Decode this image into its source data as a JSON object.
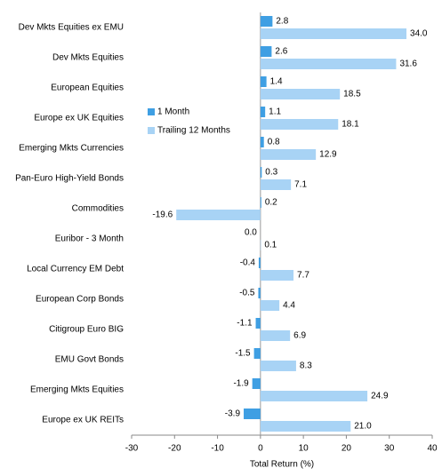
{
  "chart_data": {
    "type": "hbar",
    "xlabel": "Total Return (%)",
    "categories": [
      "Dev Mkts Equities ex EMU",
      "Dev Mkts Equities",
      "European Equities",
      "Europe ex UK Equities",
      "Emerging Mkts Currencies",
      "Pan-Euro High-Yield Bonds",
      "Commodities",
      "Euribor - 3 Month",
      "Local Currency EM Debt",
      "European Corp Bonds",
      "Citigroup Euro BIG",
      "EMU Govt Bonds",
      "Emerging Mkts Equities",
      "Europe ex UK REITs"
    ],
    "series": [
      {
        "name": "1 Month",
        "color": "#3f9fe3",
        "values": [
          2.8,
          2.6,
          1.4,
          1.1,
          0.8,
          0.3,
          0.2,
          0.0,
          -0.4,
          -0.5,
          -1.1,
          -1.5,
          -1.9,
          -3.9
        ],
        "value_labels": [
          "2.8",
          "2.6",
          "1.4",
          "1.1",
          "0.8",
          "0.3",
          "0.2",
          "0.0",
          "-0.4",
          "-0.5",
          "-1.1",
          "-1.5",
          "-1.9",
          "-3.9"
        ]
      },
      {
        "name": "Trailing 12 Months",
        "color": "#a8d3f5",
        "values": [
          34.0,
          31.6,
          18.5,
          18.1,
          12.9,
          7.1,
          -19.6,
          0.1,
          7.7,
          4.4,
          6.9,
          8.3,
          24.9,
          21.0
        ],
        "value_labels": [
          "34.0",
          "31.6",
          "18.5",
          "18.1",
          "12.9",
          "7.1",
          "-19.6",
          "0.1",
          "7.7",
          "4.4",
          "6.9",
          "8.3",
          "24.9",
          "21.0"
        ]
      }
    ],
    "xlim": [
      -30,
      40
    ],
    "xticks": [
      -30,
      -20,
      -10,
      0,
      10,
      20,
      30,
      40
    ],
    "legend": "upper-left"
  }
}
